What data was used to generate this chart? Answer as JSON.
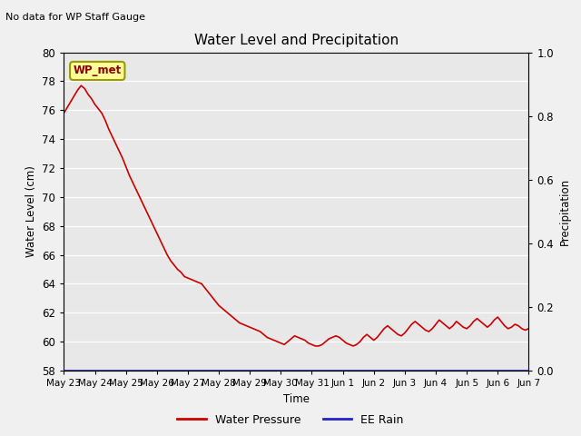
{
  "title": "Water Level and Precipitation",
  "subtitle": "No data for WP Staff Gauge",
  "ylabel_left": "Water Level (cm)",
  "ylabel_right": "Precipitation",
  "xlabel": "Time",
  "annotation": "WP_met",
  "ylim_left": [
    58,
    80
  ],
  "ylim_right": [
    0.0,
    1.0
  ],
  "yticks_left": [
    58,
    60,
    62,
    64,
    66,
    68,
    70,
    72,
    74,
    76,
    78,
    80
  ],
  "yticks_right": [
    0.0,
    0.2,
    0.4,
    0.6,
    0.8,
    1.0
  ],
  "background_color": "#e8e8e8",
  "fig_background": "#f0f0f0",
  "line_color_water": "#cc0000",
  "line_color_rain": "#2222cc",
  "legend_water": "Water Pressure",
  "legend_rain": "EE Rain",
  "xtick_labels": [
    "May 23",
    "May 24",
    "May 25",
    "May 26",
    "May 27",
    "May 28",
    "May 29",
    "May 30",
    "May 31",
    "Jun 1",
    "Jun 2",
    "Jun 3",
    "Jun 4",
    "Jun 5",
    "Jun 6",
    "Jun 7"
  ],
  "water_x": [
    0,
    1,
    2,
    3,
    4,
    5,
    6,
    7,
    8,
    9,
    10,
    11,
    12,
    13,
    14,
    15,
    16,
    17,
    18,
    19,
    20,
    21,
    22,
    23,
    24,
    25,
    26,
    27,
    28,
    29,
    30,
    31,
    32,
    33,
    34,
    35,
    36,
    37,
    38,
    39,
    40,
    41,
    42,
    43,
    44,
    45,
    46,
    47,
    48,
    49,
    50,
    51,
    52,
    53,
    54,
    55,
    56,
    57,
    58,
    59,
    60,
    61,
    62,
    63,
    64,
    65,
    66,
    67,
    68,
    69,
    70,
    71,
    72,
    73,
    74,
    75,
    76,
    77,
    78,
    79,
    80,
    81,
    82,
    83,
    84,
    85,
    86,
    87,
    88,
    89,
    90,
    91,
    92,
    93,
    94,
    95,
    96,
    97,
    98,
    99,
    100,
    101,
    102,
    103,
    104,
    105,
    106,
    107,
    108,
    109,
    110,
    111,
    112,
    113,
    114,
    115,
    116,
    117,
    118,
    119,
    120,
    121,
    122,
    123,
    124,
    125,
    126,
    127,
    128,
    129,
    130,
    131,
    132,
    133,
    134,
    135
  ],
  "water_y": [
    75.8,
    76.2,
    76.6,
    77.0,
    77.4,
    77.7,
    77.5,
    77.1,
    76.8,
    76.4,
    76.1,
    75.8,
    75.3,
    74.7,
    74.2,
    73.7,
    73.2,
    72.7,
    72.1,
    71.5,
    71.0,
    70.5,
    70.0,
    69.5,
    69.0,
    68.5,
    68.0,
    67.5,
    67.0,
    66.5,
    66.0,
    65.6,
    65.3,
    65.0,
    64.8,
    64.5,
    64.4,
    64.3,
    64.2,
    64.1,
    64.0,
    63.7,
    63.4,
    63.1,
    62.8,
    62.5,
    62.3,
    62.1,
    61.9,
    61.7,
    61.5,
    61.3,
    61.2,
    61.1,
    61.0,
    60.9,
    60.8,
    60.7,
    60.5,
    60.3,
    60.2,
    60.1,
    60.0,
    59.9,
    59.8,
    60.0,
    60.2,
    60.4,
    60.3,
    60.2,
    60.1,
    59.9,
    59.8,
    59.7,
    59.7,
    59.8,
    60.0,
    60.2,
    60.3,
    60.4,
    60.3,
    60.1,
    59.9,
    59.8,
    59.7,
    59.8,
    60.0,
    60.3,
    60.5,
    60.3,
    60.1,
    60.3,
    60.6,
    60.9,
    61.1,
    60.9,
    60.7,
    60.5,
    60.4,
    60.6,
    60.9,
    61.2,
    61.4,
    61.2,
    61.0,
    60.8,
    60.7,
    60.9,
    61.2,
    61.5,
    61.3,
    61.1,
    60.9,
    61.1,
    61.4,
    61.2,
    61.0,
    60.9,
    61.1,
    61.4,
    61.6,
    61.4,
    61.2,
    61.0,
    61.2,
    61.5,
    61.7,
    61.4,
    61.1,
    60.9,
    61.0,
    61.2,
    61.1,
    60.9,
    60.8,
    60.9
  ]
}
